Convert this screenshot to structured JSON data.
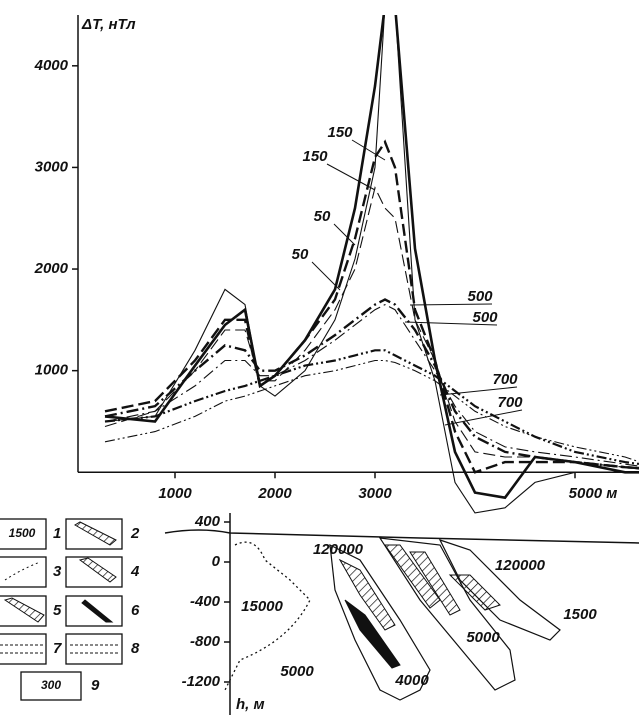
{
  "chart_data": [
    {
      "type": "line",
      "y_label": "ΔT, нТл",
      "x": [
        300,
        800,
        1200,
        1500,
        1700,
        1850,
        2000,
        2300,
        2600,
        2800,
        3000,
        3100,
        3200,
        3400,
        3600,
        3800,
        4000,
        4300,
        4600,
        5000,
        5500,
        5650
      ],
      "series": [
        {
          "name": 50,
          "color": "#111",
          "style": "solid",
          "width": 2.6,
          "values": [
            550,
            500,
            1050,
            1450,
            1600,
            850,
            950,
            1300,
            1800,
            2600,
            3800,
            4600,
            4600,
            2200,
            1100,
            200,
            -200,
            -250,
            150,
            100,
            0,
            0
          ]
        },
        {
          "name": 50,
          "color": "#111",
          "style": "solid",
          "width": 1.1,
          "values": [
            500,
            550,
            1200,
            1800,
            1650,
            850,
            750,
            1000,
            1500,
            2100,
            3000,
            4600,
            4600,
            1500,
            900,
            -100,
            -400,
            -350,
            -100,
            0,
            0,
            0
          ]
        },
        {
          "name": 150,
          "color": "#111",
          "style": "dashed",
          "width": 2.4,
          "values": [
            600,
            700,
            1100,
            1500,
            1500,
            850,
            950,
            1300,
            1700,
            2300,
            3100,
            3250,
            3000,
            1600,
            1100,
            400,
            0,
            100,
            100,
            100,
            50,
            40
          ]
        },
        {
          "name": 150,
          "color": "#111",
          "style": "dashed",
          "width": 1.1,
          "values": [
            450,
            600,
            1000,
            1400,
            1400,
            900,
            900,
            1200,
            1600,
            2000,
            2800,
            2600,
            2500,
            1500,
            1100,
            500,
            200,
            150,
            150,
            100,
            50,
            30
          ]
        },
        {
          "name": 500,
          "color": "#111",
          "style": "dashdot",
          "width": 2.4,
          "values": [
            550,
            650,
            1000,
            1250,
            1200,
            1000,
            1000,
            1150,
            1350,
            1500,
            1650,
            1700,
            1650,
            1400,
            1050,
            600,
            350,
            200,
            150,
            100,
            50,
            40
          ]
        },
        {
          "name": 500,
          "color": "#111",
          "style": "dashdot",
          "width": 1.1,
          "values": [
            500,
            600,
            850,
            1100,
            1100,
            950,
            950,
            1100,
            1300,
            1450,
            1600,
            1650,
            1600,
            1300,
            1000,
            650,
            400,
            250,
            200,
            150,
            80,
            60
          ]
        },
        {
          "name": 700,
          "color": "#111",
          "style": "dashdotdot",
          "width": 2.2,
          "values": [
            500,
            550,
            700,
            800,
            850,
            900,
            950,
            1050,
            1100,
            1150,
            1200,
            1200,
            1150,
            1050,
            950,
            800,
            650,
            500,
            350,
            200,
            100,
            80
          ]
        },
        {
          "name": 700,
          "color": "#111",
          "style": "dashdotdot",
          "width": 1.1,
          "values": [
            300,
            400,
            550,
            700,
            750,
            800,
            850,
            950,
            1000,
            1050,
            1100,
            1100,
            1080,
            1000,
            900,
            750,
            600,
            450,
            350,
            250,
            150,
            100
          ]
        }
      ],
      "xlim": [
        -70,
        5640
      ],
      "ylim": [
        -450,
        4500
      ],
      "xticks": [
        1000,
        2000,
        3000,
        {
          "value": 5000,
          "label": "5000 м"
        }
      ],
      "yticks": [
        1000,
        2000,
        3000,
        4000
      ]
    },
    {
      "type": "section",
      "y_label": "h, м",
      "ylim": [
        520,
        -1530
      ],
      "yticks": [
        400,
        0,
        -400,
        -800,
        -1200
      ],
      "annotations": [
        120000,
        120000,
        15000,
        5000,
        5000,
        4000,
        1500
      ]
    }
  ],
  "legend": {
    "items": [
      {
        "number": 1,
        "label": 1500
      },
      {
        "number": 2
      },
      {
        "number": 3
      },
      {
        "number": 4
      },
      {
        "number": 5
      },
      {
        "number": 6
      },
      {
        "number": 7
      },
      {
        "number": 8
      },
      {
        "number": 9,
        "label": 300
      }
    ]
  }
}
